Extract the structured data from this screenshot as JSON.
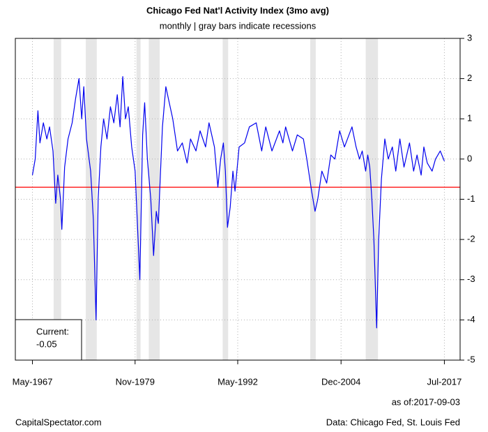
{
  "chart_data": {
    "type": "line",
    "title": "Chicago Fed Nat'l Activity Index (3mo avg)",
    "subtitle": "monthly | gray bars indicate recessions",
    "x": [
      "1967-05",
      "1967-09",
      "1968-01",
      "1968-04",
      "1968-09",
      "1969-02",
      "1969-06",
      "1969-11",
      "1970-03",
      "1970-06",
      "1970-10",
      "1970-12",
      "1971-04",
      "1971-09",
      "1972-03",
      "1972-08",
      "1973-01",
      "1973-05",
      "1973-08",
      "1973-12",
      "1974-06",
      "1974-10",
      "1975-02",
      "1975-05",
      "1975-09",
      "1976-01",
      "1976-06",
      "1976-11",
      "1977-04",
      "1977-09",
      "1978-01",
      "1978-05",
      "1978-09",
      "1979-01",
      "1979-06",
      "1979-11",
      "1980-06",
      "1980-10",
      "1981-01",
      "1981-05",
      "1981-10",
      "1982-02",
      "1982-06",
      "1982-09",
      "1983-03",
      "1983-08",
      "1984-01",
      "1984-06",
      "1985-01",
      "1985-08",
      "1986-03",
      "1986-08",
      "1987-04",
      "1987-10",
      "1988-06",
      "1988-11",
      "1989-07",
      "1989-12",
      "1990-04",
      "1990-08",
      "1990-11",
      "1991-02",
      "1991-06",
      "1991-10",
      "1992-01",
      "1992-07",
      "1993-03",
      "1993-10",
      "1994-08",
      "1995-04",
      "1995-10",
      "1996-07",
      "1997-06",
      "1997-11",
      "1998-03",
      "1999-01",
      "1999-08",
      "2000-05",
      "2000-10",
      "2001-05",
      "2001-10",
      "2002-02",
      "2002-08",
      "2003-03",
      "2003-09",
      "2004-03",
      "2004-10",
      "2005-05",
      "2006-04",
      "2006-10",
      "2007-03",
      "2007-07",
      "2007-12",
      "2008-03",
      "2008-06",
      "2008-09",
      "2008-12",
      "2009-04",
      "2009-07",
      "2009-11",
      "2010-04",
      "2010-09",
      "2011-03",
      "2011-08",
      "2012-02",
      "2012-08",
      "2013-04",
      "2013-10",
      "2014-03",
      "2014-09",
      "2015-01",
      "2015-06",
      "2016-01",
      "2016-06",
      "2017-01",
      "2017-07"
    ],
    "series": [
      {
        "color": "#0000ee",
        "values": [
          -0.4,
          0.0,
          1.2,
          0.4,
          0.9,
          0.5,
          0.8,
          0.2,
          -1.1,
          -0.4,
          -1.0,
          -1.75,
          -0.2,
          0.5,
          0.9,
          1.5,
          2.0,
          1.0,
          1.8,
          0.5,
          -0.3,
          -1.5,
          -4.0,
          -1.0,
          0.3,
          1.0,
          0.5,
          1.3,
          0.9,
          1.6,
          0.8,
          2.05,
          1.0,
          1.3,
          0.3,
          -0.3,
          -3.0,
          0.6,
          1.4,
          0.0,
          -1.0,
          -2.4,
          -1.3,
          -1.6,
          0.8,
          1.8,
          1.4,
          1.0,
          0.2,
          0.4,
          -0.1,
          0.5,
          0.2,
          0.7,
          0.3,
          0.9,
          0.3,
          -0.7,
          0.0,
          0.4,
          -0.3,
          -1.7,
          -1.2,
          -0.3,
          -0.8,
          0.3,
          0.4,
          0.8,
          0.9,
          0.2,
          0.8,
          0.2,
          0.7,
          0.4,
          0.8,
          0.2,
          0.6,
          0.5,
          0.0,
          -0.8,
          -1.3,
          -1.0,
          -0.3,
          -0.6,
          0.1,
          0.0,
          0.7,
          0.3,
          0.8,
          0.3,
          0.0,
          0.2,
          -0.3,
          0.1,
          -0.2,
          -1.0,
          -2.0,
          -4.2,
          -2.0,
          -0.5,
          0.5,
          0.0,
          0.3,
          -0.3,
          0.5,
          -0.2,
          0.4,
          -0.3,
          0.1,
          -0.4,
          0.3,
          -0.1,
          -0.3,
          0.0,
          0.2,
          -0.05
        ]
      }
    ],
    "recessions": [
      [
        "1969-12",
        "1970-11"
      ],
      [
        "1973-11",
        "1975-03"
      ],
      [
        "1980-01",
        "1980-07"
      ],
      [
        "1981-07",
        "1982-11"
      ],
      [
        "1990-07",
        "1991-03"
      ],
      [
        "2001-03",
        "2001-11"
      ],
      [
        "2007-12",
        "2009-06"
      ]
    ],
    "recession_color": "#e6e6e6",
    "reference_line": {
      "value": -0.7,
      "color": "#ff0000"
    },
    "xlim": [
      "1965-04",
      "2019-06"
    ],
    "xticks": [
      {
        "value": "1967-05",
        "label": "May-1967"
      },
      {
        "value": "1979-11",
        "label": "Nov-1979"
      },
      {
        "value": "1992-05",
        "label": "May-1992"
      },
      {
        "value": "2004-12",
        "label": "Dec-2004"
      },
      {
        "value": "2017-07",
        "label": "Jul-2017"
      }
    ],
    "ylim": [
      -5,
      3
    ],
    "yticks": [
      -5,
      -4,
      -3,
      -2,
      -1,
      0,
      1,
      2,
      3
    ],
    "grid": true,
    "current_label": "Current:",
    "current_value": -0.05,
    "as_of": "as of:2017-09-03",
    "source_left": "CapitalSpectator.com",
    "source_right": "Data: Chicago Fed, St. Louis Fed"
  }
}
